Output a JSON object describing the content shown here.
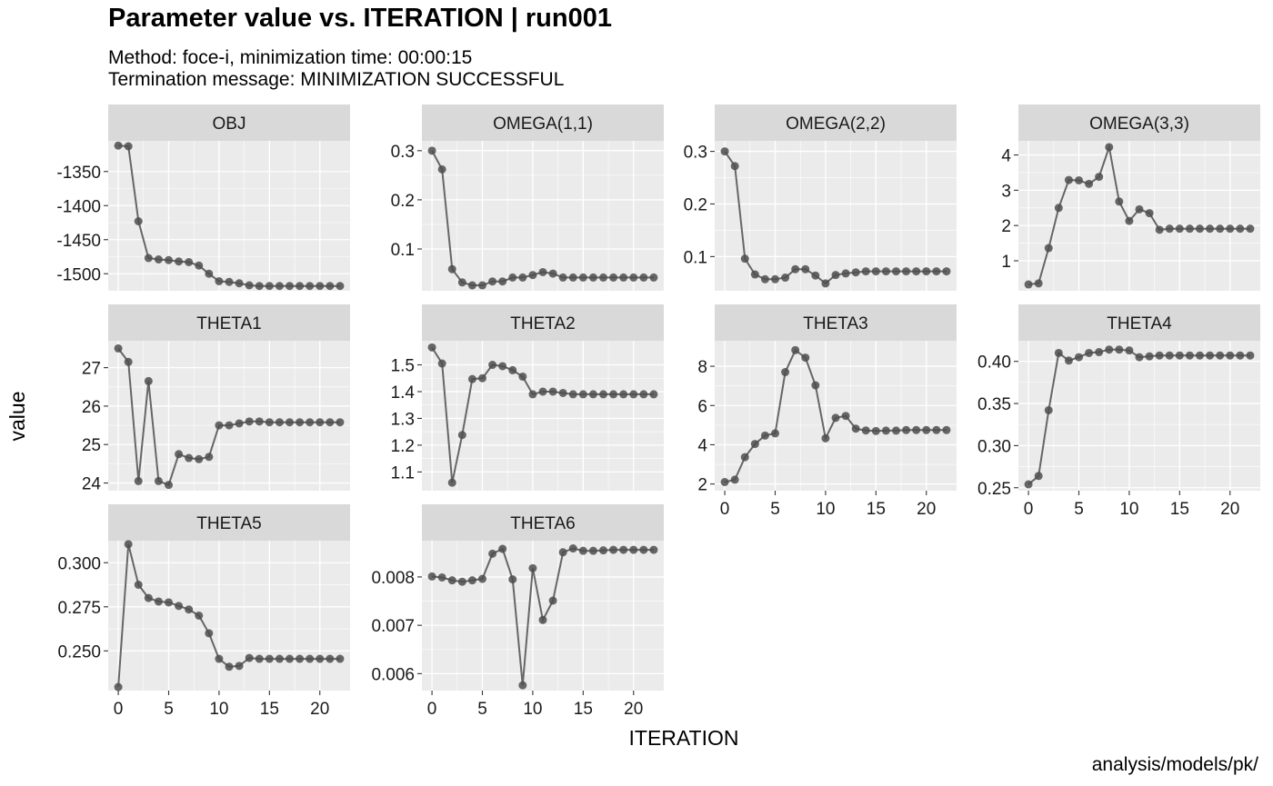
{
  "title": "Parameter value vs. ITERATION | run001",
  "subtitle_line1": "Method: foce-i, minimization time: 00:00:15",
  "subtitle_line2": "Termination message: MINIMIZATION SUCCESSFUL",
  "caption": "analysis/models/pk/",
  "xlabel": "ITERATION",
  "ylabel": "value",
  "colors": {
    "strip": "#d9d9d9",
    "panel": "#ebebeb",
    "grid": "#ffffff",
    "line": "#666666",
    "point": "#4d4d4d"
  },
  "chart_data": {
    "type": "line",
    "facets": [
      "OBJ",
      "OMEGA(1,1)",
      "OMEGA(2,2)",
      "OMEGA(3,3)",
      "THETA1",
      "THETA2",
      "THETA3",
      "THETA4",
      "THETA5",
      "THETA6"
    ],
    "x": [
      0,
      1,
      2,
      3,
      4,
      5,
      6,
      7,
      8,
      9,
      10,
      11,
      12,
      13,
      14,
      15,
      16,
      17,
      18,
      19,
      20,
      21,
      22
    ],
    "xlim": [
      -1,
      23
    ],
    "xticks": [
      0,
      5,
      10,
      15,
      20
    ],
    "xtick_labels": [
      "0",
      "5",
      "10",
      "15",
      "20"
    ],
    "grid": true,
    "series": [
      {
        "facet": "OBJ",
        "ylim": [
          -1525,
          -1305
        ],
        "yticks": [
          -1350,
          -1400,
          -1450,
          -1500
        ],
        "ytick_labels": [
          "-1350",
          "-1400",
          "-1450",
          "-1500"
        ],
        "values": [
          -1312,
          -1313,
          -1423,
          -1477,
          -1479,
          -1480,
          -1482,
          -1483,
          -1488,
          -1500,
          -1511,
          -1512,
          -1514,
          -1517,
          -1518,
          -1518,
          -1518,
          -1518,
          -1518,
          -1518,
          -1518,
          -1518,
          -1518
        ]
      },
      {
        "facet": "OMEGA(1,1)",
        "ylim": [
          0.015,
          0.32
        ],
        "yticks": [
          0.1,
          0.2,
          0.3
        ],
        "ytick_labels": [
          "0.1",
          "0.2",
          "0.3"
        ],
        "values": [
          0.3,
          0.262,
          0.059,
          0.032,
          0.026,
          0.026,
          0.034,
          0.034,
          0.042,
          0.042,
          0.047,
          0.053,
          0.05,
          0.042,
          0.042,
          0.042,
          0.042,
          0.042,
          0.042,
          0.042,
          0.042,
          0.042,
          0.042
        ]
      },
      {
        "facet": "OMEGA(2,2)",
        "ylim": [
          0.035,
          0.32
        ],
        "yticks": [
          0.1,
          0.2,
          0.3
        ],
        "ytick_labels": [
          "0.1",
          "0.2",
          "0.3"
        ],
        "values": [
          0.3,
          0.272,
          0.096,
          0.066,
          0.057,
          0.057,
          0.06,
          0.076,
          0.076,
          0.064,
          0.049,
          0.065,
          0.068,
          0.07,
          0.072,
          0.072,
          0.072,
          0.072,
          0.072,
          0.072,
          0.072,
          0.072,
          0.072
        ]
      },
      {
        "facet": "OMEGA(3,3)",
        "ylim": [
          0.15,
          4.4
        ],
        "yticks": [
          1,
          2,
          3,
          4
        ],
        "ytick_labels": [
          "1",
          "2",
          "3",
          "4"
        ],
        "values": [
          0.33,
          0.36,
          1.36,
          2.5,
          3.29,
          3.28,
          3.18,
          3.38,
          4.22,
          2.68,
          2.13,
          2.46,
          2.35,
          1.88,
          1.91,
          1.91,
          1.91,
          1.91,
          1.91,
          1.91,
          1.91,
          1.91,
          1.91
        ]
      },
      {
        "facet": "THETA1",
        "ylim": [
          23.8,
          27.7
        ],
        "yticks": [
          24,
          25,
          26,
          27
        ],
        "ytick_labels": [
          "24",
          "25",
          "26",
          "27"
        ],
        "values": [
          27.5,
          27.15,
          24.05,
          26.65,
          24.05,
          23.95,
          24.75,
          24.65,
          24.62,
          24.68,
          25.5,
          25.5,
          25.55,
          25.6,
          25.6,
          25.58,
          25.58,
          25.58,
          25.58,
          25.58,
          25.58,
          25.58,
          25.58
        ]
      },
      {
        "facet": "THETA2",
        "ylim": [
          1.03,
          1.59
        ],
        "yticks": [
          1.1,
          1.2,
          1.3,
          1.4,
          1.5
        ],
        "ytick_labels": [
          "1.1",
          "1.2",
          "1.3",
          "1.4",
          "1.5"
        ],
        "values": [
          1.565,
          1.505,
          1.06,
          1.238,
          1.447,
          1.45,
          1.5,
          1.495,
          1.48,
          1.456,
          1.39,
          1.4,
          1.4,
          1.395,
          1.39,
          1.39,
          1.39,
          1.39,
          1.39,
          1.39,
          1.39,
          1.39,
          1.39
        ]
      },
      {
        "facet": "THETA3",
        "ylim": [
          1.66,
          9.3
        ],
        "yticks": [
          2,
          4,
          6,
          8
        ],
        "ytick_labels": [
          "2",
          "4",
          "6",
          "8"
        ],
        "values": [
          2.1,
          2.22,
          3.37,
          4.04,
          4.47,
          4.58,
          7.7,
          8.82,
          8.44,
          7.03,
          4.33,
          5.37,
          5.47,
          4.82,
          4.73,
          4.7,
          4.72,
          4.72,
          4.75,
          4.75,
          4.75,
          4.75,
          4.75
        ]
      },
      {
        "facet": "THETA4",
        "ylim": [
          0.2465,
          0.4245
        ],
        "yticks": [
          0.25,
          0.3,
          0.35,
          0.4
        ],
        "ytick_labels": [
          "0.25",
          "0.30",
          "0.35",
          "0.40"
        ],
        "values": [
          0.254,
          0.264,
          0.342,
          0.41,
          0.401,
          0.405,
          0.41,
          0.411,
          0.414,
          0.414,
          0.413,
          0.405,
          0.406,
          0.407,
          0.407,
          0.407,
          0.407,
          0.407,
          0.407,
          0.407,
          0.407,
          0.407,
          0.407
        ]
      },
      {
        "facet": "THETA5",
        "ylim": [
          0.2275,
          0.3125
        ],
        "yticks": [
          0.25,
          0.275,
          0.3
        ],
        "ytick_labels": [
          "0.250",
          "0.275",
          "0.300"
        ],
        "values": [
          0.2295,
          0.3105,
          0.2875,
          0.28,
          0.278,
          0.2775,
          0.2755,
          0.2735,
          0.27,
          0.26,
          0.2455,
          0.241,
          0.2415,
          0.246,
          0.2455,
          0.2455,
          0.2455,
          0.2455,
          0.2455,
          0.2455,
          0.2455,
          0.2455,
          0.2455
        ]
      },
      {
        "facet": "THETA6",
        "ylim": [
          0.00565,
          0.00875
        ],
        "yticks": [
          0.006,
          0.007,
          0.008
        ],
        "ytick_labels": [
          "0.006",
          "0.007",
          "0.008"
        ],
        "values": [
          0.00801,
          0.00799,
          0.00793,
          0.0079,
          0.00793,
          0.00796,
          0.00848,
          0.00858,
          0.00795,
          0.00576,
          0.00818,
          0.00711,
          0.00751,
          0.00851,
          0.00859,
          0.00854,
          0.00854,
          0.00855,
          0.00856,
          0.00856,
          0.00856,
          0.00856,
          0.00856
        ]
      }
    ]
  }
}
